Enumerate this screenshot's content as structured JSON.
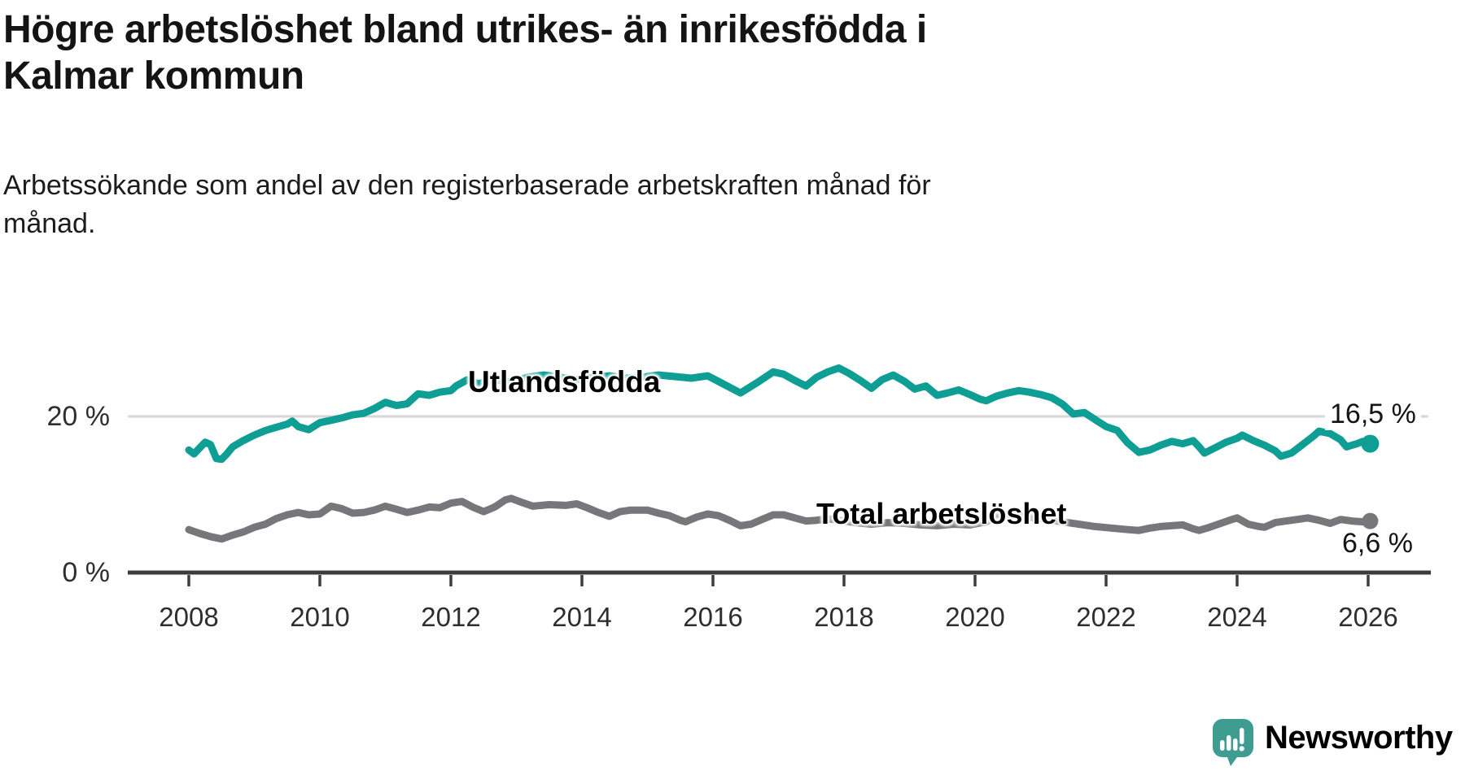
{
  "header": {
    "title": "Högre arbetslöshet bland utrikes- än inrikesfödda i Kalmar kommun",
    "title_lines": [
      "Högre arbetslöshet bland utrikes- än inrikesfödda i",
      "Kalmar kommun"
    ],
    "subtitle": "Arbetssökande som andel av den registerbaserade arbetskraften månad för månad.",
    "subtitle_lines": [
      "Arbetssökande som andel av den registerbaserade arbetskraften månad för",
      "månad."
    ]
  },
  "branding": {
    "logo_text": "Newsworthy",
    "logo_icon": "speech-bubble-bar-chart",
    "logo_color": "#3f9c91"
  },
  "colors": {
    "accent_teal": "#0f9e94",
    "series_gray": "#77767b",
    "grid": "#d7d7d7",
    "axis": "#3d3d3d",
    "text_dark": "#141414",
    "tick_text": "#2e2e2e"
  },
  "chart_data": {
    "type": "line",
    "unit": "%",
    "title": "Högre arbetslöshet bland utrikes- än inrikesfödda i Kalmar kommun",
    "xlabel": "",
    "ylabel": "Arbetssökande som andel av den registerbaserade arbetskraften",
    "x_axis": {
      "ticks": [
        2008,
        2010,
        2012,
        2014,
        2016,
        2018,
        2020,
        2022,
        2024,
        2026
      ],
      "range": [
        2007.1,
        2027.0
      ]
    },
    "y_axis": {
      "ticks": [
        {
          "value": 0,
          "label": "0 %",
          "grid": false
        },
        {
          "value": 20,
          "label": "20 %",
          "grid": true
        }
      ],
      "range": [
        0,
        27
      ]
    },
    "legend_position": "inline-labels",
    "series": [
      {
        "name": "Utlandsfödda",
        "color": "#0f9e94",
        "end_label": "16,5 %",
        "end_value": 16.5,
        "dot_radius": 11,
        "points": [
          [
            2008.0,
            15.7
          ],
          [
            2008.08,
            15.2
          ],
          [
            2008.17,
            16.0
          ],
          [
            2008.25,
            16.7
          ],
          [
            2008.33,
            16.4
          ],
          [
            2008.42,
            14.6
          ],
          [
            2008.5,
            14.5
          ],
          [
            2008.58,
            15.2
          ],
          [
            2008.67,
            16.1
          ],
          [
            2008.83,
            16.9
          ],
          [
            2009.0,
            17.6
          ],
          [
            2009.17,
            18.2
          ],
          [
            2009.33,
            18.6
          ],
          [
            2009.5,
            19.0
          ],
          [
            2009.58,
            19.4
          ],
          [
            2009.67,
            18.7
          ],
          [
            2009.83,
            18.3
          ],
          [
            2010.0,
            19.2
          ],
          [
            2010.17,
            19.5
          ],
          [
            2010.33,
            19.8
          ],
          [
            2010.5,
            20.2
          ],
          [
            2010.67,
            20.4
          ],
          [
            2010.83,
            21.0
          ],
          [
            2011.0,
            21.8
          ],
          [
            2011.17,
            21.4
          ],
          [
            2011.33,
            21.6
          ],
          [
            2011.5,
            22.9
          ],
          [
            2011.67,
            22.7
          ],
          [
            2011.83,
            23.1
          ],
          [
            2012.0,
            23.3
          ],
          [
            2012.08,
            23.9
          ],
          [
            2012.25,
            24.7
          ],
          [
            2012.42,
            24.2
          ],
          [
            2012.67,
            24.7
          ],
          [
            2012.92,
            24.4
          ],
          [
            2013.17,
            25.0
          ],
          [
            2013.42,
            25.3
          ],
          [
            2013.67,
            25.0
          ],
          [
            2013.92,
            24.7
          ],
          [
            2014.17,
            25.0
          ],
          [
            2014.42,
            25.2
          ],
          [
            2014.67,
            24.9
          ],
          [
            2014.92,
            25.0
          ],
          [
            2015.17,
            25.3
          ],
          [
            2015.42,
            25.1
          ],
          [
            2015.67,
            24.9
          ],
          [
            2015.92,
            25.2
          ],
          [
            2016.17,
            24.1
          ],
          [
            2016.42,
            23.0
          ],
          [
            2016.67,
            24.3
          ],
          [
            2016.92,
            25.7
          ],
          [
            2017.08,
            25.4
          ],
          [
            2017.25,
            24.6
          ],
          [
            2017.42,
            23.9
          ],
          [
            2017.58,
            25.0
          ],
          [
            2017.75,
            25.7
          ],
          [
            2017.92,
            26.2
          ],
          [
            2018.08,
            25.5
          ],
          [
            2018.25,
            24.6
          ],
          [
            2018.42,
            23.6
          ],
          [
            2018.58,
            24.7
          ],
          [
            2018.75,
            25.3
          ],
          [
            2018.92,
            24.5
          ],
          [
            2019.08,
            23.5
          ],
          [
            2019.25,
            23.9
          ],
          [
            2019.42,
            22.7
          ],
          [
            2019.58,
            23.0
          ],
          [
            2019.75,
            23.4
          ],
          [
            2019.92,
            22.8
          ],
          [
            2020.08,
            22.2
          ],
          [
            2020.17,
            22.0
          ],
          [
            2020.33,
            22.6
          ],
          [
            2020.5,
            23.0
          ],
          [
            2020.67,
            23.3
          ],
          [
            2020.83,
            23.1
          ],
          [
            2021.0,
            22.8
          ],
          [
            2021.17,
            22.4
          ],
          [
            2021.33,
            21.6
          ],
          [
            2021.5,
            20.3
          ],
          [
            2021.67,
            20.5
          ],
          [
            2021.83,
            19.6
          ],
          [
            2022.0,
            18.7
          ],
          [
            2022.17,
            18.2
          ],
          [
            2022.33,
            16.6
          ],
          [
            2022.5,
            15.4
          ],
          [
            2022.67,
            15.7
          ],
          [
            2022.83,
            16.3
          ],
          [
            2023.0,
            16.8
          ],
          [
            2023.17,
            16.5
          ],
          [
            2023.33,
            16.9
          ],
          [
            2023.42,
            16.1
          ],
          [
            2023.5,
            15.3
          ],
          [
            2023.67,
            16.0
          ],
          [
            2023.83,
            16.7
          ],
          [
            2024.0,
            17.2
          ],
          [
            2024.08,
            17.6
          ],
          [
            2024.25,
            16.9
          ],
          [
            2024.42,
            16.3
          ],
          [
            2024.58,
            15.6
          ],
          [
            2024.67,
            14.9
          ],
          [
            2024.83,
            15.3
          ],
          [
            2025.0,
            16.4
          ],
          [
            2025.17,
            17.5
          ],
          [
            2025.25,
            18.1
          ],
          [
            2025.42,
            17.8
          ],
          [
            2025.58,
            17.0
          ],
          [
            2025.67,
            16.1
          ],
          [
            2025.83,
            16.5
          ],
          [
            2025.92,
            16.8
          ],
          [
            2026.03,
            16.5
          ]
        ]
      },
      {
        "name": "Total arbetslöshet",
        "color": "#77767b",
        "end_label": "6,6 %",
        "end_value": 6.6,
        "dot_radius": 10,
        "points": [
          [
            2008.0,
            5.5
          ],
          [
            2008.17,
            5.0
          ],
          [
            2008.33,
            4.6
          ],
          [
            2008.5,
            4.3
          ],
          [
            2008.67,
            4.8
          ],
          [
            2008.83,
            5.2
          ],
          [
            2009.0,
            5.8
          ],
          [
            2009.17,
            6.2
          ],
          [
            2009.33,
            6.9
          ],
          [
            2009.5,
            7.4
          ],
          [
            2009.67,
            7.7
          ],
          [
            2009.83,
            7.4
          ],
          [
            2010.0,
            7.5
          ],
          [
            2010.17,
            8.5
          ],
          [
            2010.33,
            8.2
          ],
          [
            2010.5,
            7.6
          ],
          [
            2010.67,
            7.7
          ],
          [
            2010.83,
            8.0
          ],
          [
            2011.0,
            8.5
          ],
          [
            2011.17,
            8.1
          ],
          [
            2011.33,
            7.7
          ],
          [
            2011.5,
            8.0
          ],
          [
            2011.67,
            8.4
          ],
          [
            2011.83,
            8.3
          ],
          [
            2012.0,
            8.9
          ],
          [
            2012.17,
            9.1
          ],
          [
            2012.33,
            8.4
          ],
          [
            2012.5,
            7.8
          ],
          [
            2012.67,
            8.4
          ],
          [
            2012.83,
            9.3
          ],
          [
            2012.92,
            9.5
          ],
          [
            2013.08,
            9.0
          ],
          [
            2013.25,
            8.5
          ],
          [
            2013.5,
            8.7
          ],
          [
            2013.75,
            8.6
          ],
          [
            2013.92,
            8.8
          ],
          [
            2014.08,
            8.3
          ],
          [
            2014.25,
            7.7
          ],
          [
            2014.42,
            7.2
          ],
          [
            2014.58,
            7.8
          ],
          [
            2014.75,
            8.0
          ],
          [
            2015.0,
            8.0
          ],
          [
            2015.17,
            7.6
          ],
          [
            2015.33,
            7.3
          ],
          [
            2015.5,
            6.7
          ],
          [
            2015.58,
            6.5
          ],
          [
            2015.75,
            7.1
          ],
          [
            2015.92,
            7.5
          ],
          [
            2016.08,
            7.3
          ],
          [
            2016.25,
            6.7
          ],
          [
            2016.42,
            6.0
          ],
          [
            2016.58,
            6.2
          ],
          [
            2016.75,
            6.8
          ],
          [
            2016.92,
            7.4
          ],
          [
            2017.08,
            7.4
          ],
          [
            2017.25,
            7.0
          ],
          [
            2017.42,
            6.6
          ],
          [
            2017.58,
            6.7
          ],
          [
            2017.75,
            6.9
          ],
          [
            2017.92,
            6.7
          ],
          [
            2018.17,
            6.4
          ],
          [
            2018.42,
            6.2
          ],
          [
            2018.67,
            6.4
          ],
          [
            2018.92,
            6.3
          ],
          [
            2019.17,
            6.1
          ],
          [
            2019.42,
            6.0
          ],
          [
            2019.67,
            6.2
          ],
          [
            2019.92,
            6.1
          ],
          [
            2020.17,
            6.5
          ],
          [
            2020.42,
            7.5
          ],
          [
            2020.58,
            7.4
          ],
          [
            2020.83,
            7.1
          ],
          [
            2021.08,
            6.8
          ],
          [
            2021.33,
            6.5
          ],
          [
            2021.58,
            6.2
          ],
          [
            2021.83,
            5.9
          ],
          [
            2022.08,
            5.7
          ],
          [
            2022.33,
            5.5
          ],
          [
            2022.5,
            5.4
          ],
          [
            2022.67,
            5.7
          ],
          [
            2022.83,
            5.9
          ],
          [
            2023.0,
            6.0
          ],
          [
            2023.17,
            6.1
          ],
          [
            2023.33,
            5.6
          ],
          [
            2023.42,
            5.4
          ],
          [
            2023.58,
            5.8
          ],
          [
            2023.75,
            6.3
          ],
          [
            2023.92,
            6.8
          ],
          [
            2024.0,
            7.0
          ],
          [
            2024.17,
            6.2
          ],
          [
            2024.33,
            5.9
          ],
          [
            2024.42,
            5.8
          ],
          [
            2024.58,
            6.4
          ],
          [
            2024.75,
            6.6
          ],
          [
            2024.92,
            6.8
          ],
          [
            2025.08,
            7.0
          ],
          [
            2025.25,
            6.7
          ],
          [
            2025.42,
            6.3
          ],
          [
            2025.58,
            6.8
          ],
          [
            2025.75,
            6.6
          ],
          [
            2025.92,
            6.5
          ],
          [
            2026.03,
            6.6
          ]
        ]
      }
    ]
  }
}
